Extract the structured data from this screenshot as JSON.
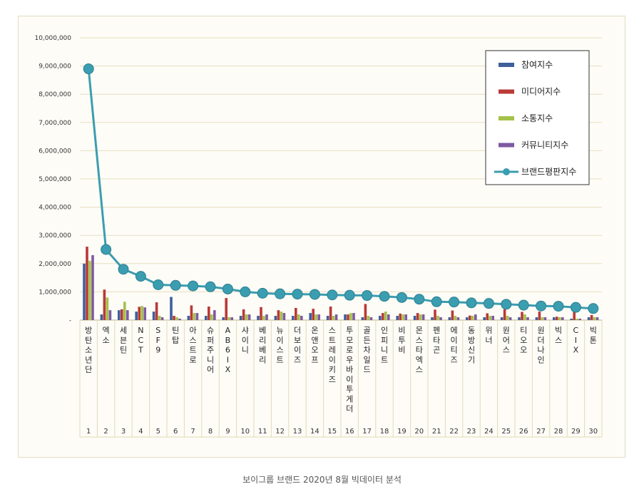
{
  "caption": "보이그룹 브랜드 2020년 8월 빅데이터 분석",
  "chart_data": {
    "type": "bar",
    "y_ticks": [
      "-",
      "1,000,000",
      "2,000,000",
      "3,000,000",
      "4,000,000",
      "5,000,000",
      "6,000,000",
      "7,000,000",
      "8,000,000",
      "9,000,000",
      "10,000,000"
    ],
    "ylim": [
      0,
      10000000
    ],
    "grid": true,
    "legend_position": "top-right",
    "categories": [
      "방탄소년단",
      "엑소",
      "세븐틴",
      "NCT",
      "SF9",
      "틴탑",
      "아스트로",
      "슈퍼주니어",
      "AB6IX",
      "샤이니",
      "베리베리",
      "뉴이스트",
      "더보이즈",
      "온앤오프",
      "스트레이키즈",
      "투모로우바이투게더",
      "골든차일드",
      "인피니트",
      "비투비",
      "몬스타엑스",
      "펜타곤",
      "에이티즈",
      "동방신기",
      "위너",
      "원어스",
      "티오오",
      "원더나인",
      "빅스",
      "CIX",
      "빅톤"
    ],
    "ranks": [
      "1",
      "2",
      "3",
      "4",
      "5",
      "6",
      "7",
      "8",
      "9",
      "10",
      "11",
      "12",
      "13",
      "14",
      "15",
      "16",
      "17",
      "18",
      "19",
      "20",
      "21",
      "22",
      "23",
      "24",
      "25",
      "26",
      "27",
      "28",
      "29",
      "30"
    ],
    "series": [
      {
        "name": "참여지수",
        "kind": "bar",
        "color": "#3f5f9c",
        "values": [
          2000000,
          200000,
          350000,
          300000,
          300000,
          820000,
          150000,
          150000,
          100000,
          150000,
          150000,
          150000,
          150000,
          250000,
          150000,
          200000,
          100000,
          150000,
          150000,
          150000,
          100000,
          100000,
          100000,
          100000,
          100000,
          100000,
          100000,
          100000,
          50000,
          100000
        ]
      },
      {
        "name": "미디어지수",
        "kind": "bar",
        "color": "#b93a36",
        "values": [
          2600000,
          1080000,
          380000,
          470000,
          630000,
          150000,
          520000,
          480000,
          780000,
          380000,
          460000,
          350000,
          430000,
          400000,
          480000,
          200000,
          570000,
          250000,
          230000,
          250000,
          370000,
          340000,
          160000,
          240000,
          380000,
          290000,
          300000,
          120000,
          300000,
          180000
        ]
      },
      {
        "name": "소통지수",
        "kind": "bar",
        "color": "#a3c24a",
        "values": [
          2100000,
          800000,
          650000,
          500000,
          150000,
          100000,
          250000,
          200000,
          100000,
          200000,
          150000,
          300000,
          200000,
          200000,
          150000,
          250000,
          150000,
          300000,
          200000,
          200000,
          150000,
          150000,
          150000,
          150000,
          150000,
          200000,
          100000,
          100000,
          50000,
          100000
        ]
      },
      {
        "name": "커뮤니티지수",
        "kind": "bar",
        "color": "#7e5aa2",
        "values": [
          2300000,
          350000,
          350000,
          450000,
          100000,
          50000,
          250000,
          350000,
          100000,
          200000,
          200000,
          250000,
          150000,
          200000,
          200000,
          250000,
          100000,
          200000,
          200000,
          200000,
          100000,
          100000,
          200000,
          150000,
          100000,
          100000,
          100000,
          100000,
          50000,
          100000
        ]
      },
      {
        "name": "브랜드평판지수",
        "kind": "line",
        "color": "#3b9db0",
        "values": [
          8900000,
          2500000,
          1800000,
          1550000,
          1250000,
          1230000,
          1210000,
          1180000,
          1100000,
          1000000,
          950000,
          930000,
          920000,
          910000,
          890000,
          880000,
          870000,
          840000,
          800000,
          740000,
          650000,
          640000,
          610000,
          590000,
          560000,
          530000,
          500000,
          490000,
          450000,
          410000
        ]
      }
    ]
  }
}
